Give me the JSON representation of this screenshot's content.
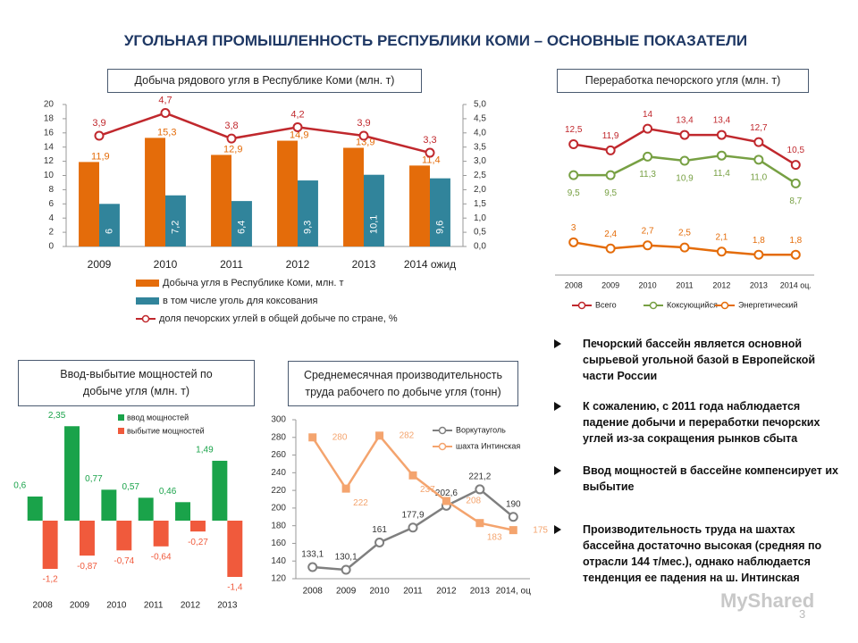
{
  "title": "УГОЛЬНАЯ ПРОМЫШЛЕННОСТЬ РЕСПУБЛИКИ КОМИ – ОСНОВНЫЕ ПОКАЗАТЕЛИ",
  "chart_data": [
    {
      "type": "bar",
      "title": "Добыча рядового угля в Республике Коми (млн. т)",
      "categories": [
        "2009",
        "2010",
        "2011",
        "2012",
        "2013",
        "2014 ожид"
      ],
      "series": [
        {
          "name": "Добыча угля в Республике Коми, млн. т",
          "color": "#e46c0a",
          "values": [
            11.9,
            15.3,
            12.9,
            14.9,
            13.9,
            11.4
          ],
          "value_labels": [
            "11,9",
            "15,3",
            "12,9",
            "14,9",
            "13,9",
            "11,4"
          ]
        },
        {
          "name": "в том числе уголь для коксования",
          "color": "#31849b",
          "values": [
            6,
            7.2,
            6.4,
            9.3,
            10.1,
            9.6
          ],
          "value_labels": [
            "6",
            "7,2",
            "6,4",
            "9,3",
            "10,1",
            "9,6"
          ]
        },
        {
          "name": "доля печорских углей в общей добыче по стране, %",
          "type": "line",
          "axis": "y2",
          "color": "#c0282d",
          "values": [
            3.9,
            4.7,
            3.8,
            4.2,
            3.9,
            3.3
          ],
          "value_labels": [
            "3,9",
            "4,7",
            "3,8",
            "4,2",
            "3,9",
            "3,3"
          ]
        }
      ],
      "ylim": [
        0,
        20
      ],
      "yticks": [
        0,
        2,
        4,
        6,
        8,
        10,
        12,
        14,
        16,
        18,
        20
      ],
      "y2lim": [
        0,
        5
      ],
      "y2ticks": [
        {
          "value": 0,
          "label": "0,0"
        },
        {
          "value": 0.5,
          "label": "0,5"
        },
        {
          "value": 1,
          "label": "1,0"
        },
        {
          "value": 1.5,
          "label": "1,5"
        },
        {
          "value": 2,
          "label": "2,0"
        },
        {
          "value": 2.5,
          "label": "2,5"
        },
        {
          "value": 3,
          "label": "3,0"
        },
        {
          "value": 3.5,
          "label": "3,5"
        },
        {
          "value": 4,
          "label": "4,0"
        },
        {
          "value": 4.5,
          "label": "4,5"
        },
        {
          "value": 5,
          "label": "5,0"
        }
      ],
      "grid": false
    },
    {
      "type": "line",
      "title": "Переработка печорского угля (млн. т)",
      "categories": [
        "2008",
        "2009",
        "2010",
        "2011",
        "2012",
        "2013",
        "2014 оц."
      ],
      "series": [
        {
          "name": "Всего",
          "color": "#c0282d",
          "values": [
            12.5,
            11.9,
            14,
            13.4,
            13.4,
            12.7,
            10.5
          ],
          "value_labels": [
            "12,5",
            "11,9",
            "14",
            "13,4",
            "13,4",
            "12,7",
            "10,5"
          ]
        },
        {
          "name": "Коксующийся",
          "color": "#77a043",
          "values": [
            9.5,
            9.5,
            11.3,
            10.9,
            11.4,
            11.0,
            8.7
          ],
          "value_labels": [
            "9,5",
            "9,5",
            "11,3",
            "10,9",
            "11,4",
            "11,0",
            "8,7"
          ]
        },
        {
          "name": "Энергетический",
          "color": "#e46c0a",
          "values": [
            3,
            2.4,
            2.7,
            2.5,
            2.1,
            1.8,
            1.8
          ],
          "value_labels": [
            "3",
            "2,4",
            "2,7",
            "2,5",
            "2,1",
            "1,8",
            "1,8"
          ]
        }
      ],
      "ylim": [
        0,
        16
      ],
      "grid": false
    },
    {
      "type": "bar",
      "title": "Ввод-выбытие мощностей по добыче угля (млн. т)",
      "categories": [
        "2008",
        "2009",
        "2010",
        "2011",
        "2012",
        "2013"
      ],
      "series": [
        {
          "name": "ввод мощностей",
          "color": "#1aa34a",
          "values": [
            0.6,
            2.35,
            0.77,
            0.57,
            0.46,
            1.49
          ],
          "value_labels": [
            "0,6",
            "2,35",
            "0,77",
            "0,57",
            "0,46",
            "1,49"
          ]
        },
        {
          "name": "выбытие мощностей",
          "color": "#f05a3c",
          "values": [
            -1.2,
            -0.87,
            -0.74,
            -0.64,
            -0.27,
            -1.4
          ],
          "value_labels": [
            "-1,2",
            "-0,87",
            "-0,74",
            "-0,64",
            "-0,27",
            "-1,4"
          ]
        }
      ],
      "ylim": [
        -1.6,
        2.6
      ],
      "grid": false
    },
    {
      "type": "line",
      "title": "Среднемесячная производительность труда рабочего по добыче угля (тонн)",
      "categories": [
        "2008",
        "2009",
        "2010",
        "2011",
        "2012",
        "2013",
        "2014, оц"
      ],
      "series": [
        {
          "name": "Воркутауголь",
          "color": "#7f7f7f",
          "values": [
            133.1,
            130.1,
            161,
            177.9,
            202.6,
            221.2,
            190
          ],
          "value_labels": [
            "133,1",
            "130,1",
            "161",
            "177,9",
            "202,6",
            "221,2",
            "190"
          ]
        },
        {
          "name": "шахта Интинская",
          "color": "#f4a46e",
          "values": [
            280,
            222,
            282,
            237,
            208,
            183,
            175
          ]
        }
      ],
      "ylim": [
        120,
        300
      ],
      "yticks": [
        120,
        140,
        160,
        180,
        200,
        220,
        240,
        260,
        280,
        300
      ],
      "grid": false
    }
  ],
  "bullets": [
    "Печорский бассейн является основной сырьевой угольной базой в Европейской части России",
    "К сожалению, с 2011 года наблюдается падение добычи и переработки печорских углей из-за сокращения рынков сбыта",
    "Ввод мощностей в бассейне компенсирует их выбытие",
    "Производительность труда на шахтах бассейна достаточно высокая (средняя по отрасли 144 т/мес.), однако наблюдается тенденция ее падения на ш. Интинская"
  ],
  "watermark": "MyShared",
  "page_number": "3"
}
